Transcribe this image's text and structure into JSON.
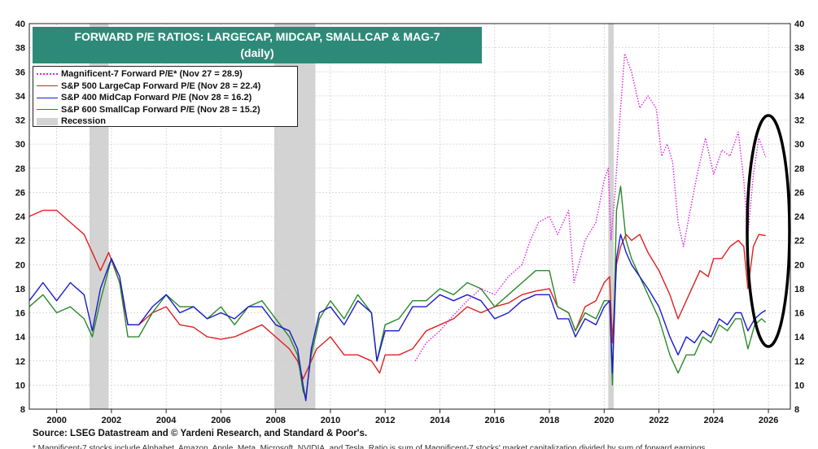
{
  "chart_data": {
    "type": "line",
    "title": "FORWARD P/E RATIOS: LARGECAP, MIDCAP, SMALLCAP & MAG-7",
    "subtitle": "(daily)",
    "xlabel": "",
    "ylabel": "",
    "xlim": [
      1999.0,
      2026.8
    ],
    "ylim": [
      8,
      40
    ],
    "x_ticks": [
      "2000",
      "2002",
      "2004",
      "2006",
      "2008",
      "2010",
      "2012",
      "2014",
      "2016",
      "2018",
      "2020",
      "2022",
      "2024",
      "2026"
    ],
    "y_ticks": [
      8,
      10,
      12,
      14,
      16,
      18,
      20,
      22,
      24,
      26,
      28,
      30,
      32,
      34,
      36,
      38,
      40
    ],
    "y_tick_labels_left": [
      "8",
      "10",
      "12",
      "14",
      "16",
      "18",
      "20",
      "22",
      "24",
      "26",
      "28",
      "30",
      "32",
      "34",
      "36",
      "38",
      "40"
    ],
    "y_tick_labels_right": [
      "8",
      "10",
      "12",
      "14",
      "16",
      "18",
      "20",
      "22",
      "24",
      "26",
      "28",
      "30",
      "32",
      "34",
      "36",
      "38",
      "40"
    ],
    "recessions": [
      [
        2001.2,
        2001.9
      ],
      [
        2007.95,
        2009.45
      ],
      [
        2020.15,
        2020.35
      ]
    ],
    "recession_color": "#d3d3d3",
    "annotation": {
      "type": "ellipse",
      "center": [
        2025.6,
        22.8
      ],
      "note": "black oval highlighting latest readings"
    },
    "series": [
      {
        "name": "Magnificent-7 Forward P/E* (Nov 27 = 28.9)",
        "color": "#dd22dd",
        "style": "dotted",
        "x": [
          2013.1,
          2013.5,
          2014.0,
          2014.5,
          2015.0,
          2015.5,
          2016.0,
          2016.5,
          2017.0,
          2017.3,
          2017.6,
          2018.0,
          2018.3,
          2018.7,
          2018.9,
          2019.3,
          2019.7,
          2020.0,
          2020.15,
          2020.25,
          2020.4,
          2020.6,
          2020.75,
          2021.0,
          2021.3,
          2021.6,
          2021.9,
          2022.1,
          2022.3,
          2022.5,
          2022.7,
          2022.9,
          2023.1,
          2023.4,
          2023.7,
          2024.0,
          2024.3,
          2024.6,
          2024.9,
          2025.1,
          2025.25,
          2025.45,
          2025.65,
          2025.9
        ],
        "values": [
          12.0,
          13.5,
          14.5,
          15.8,
          17.0,
          18.0,
          17.5,
          19.0,
          20.0,
          22.0,
          23.5,
          24.0,
          22.5,
          24.5,
          18.5,
          22.0,
          23.5,
          27.0,
          28.0,
          22.0,
          26.0,
          33.0,
          37.5,
          36.0,
          33.0,
          34.0,
          33.0,
          29.0,
          30.0,
          28.5,
          23.5,
          21.5,
          24.0,
          27.5,
          30.5,
          27.5,
          29.5,
          29.0,
          31.0,
          27.0,
          22.5,
          27.5,
          30.5,
          28.9
        ]
      },
      {
        "name": "S&P 500 LargeCap Forward P/E (Nov 28 = 22.4)",
        "color": "#e02020",
        "style": "solid",
        "x": [
          1999.0,
          1999.5,
          2000.0,
          2000.5,
          2001.0,
          2001.3,
          2001.6,
          2001.9,
          2002.3,
          2002.6,
          2003.0,
          2003.5,
          2004.0,
          2004.5,
          2005.0,
          2005.5,
          2006.0,
          2006.5,
          2007.0,
          2007.5,
          2008.0,
          2008.5,
          2008.8,
          2009.0,
          2009.2,
          2009.5,
          2010.0,
          2010.5,
          2011.0,
          2011.5,
          2011.8,
          2012.0,
          2012.5,
          2013.0,
          2013.5,
          2014.0,
          2014.5,
          2015.0,
          2015.5,
          2016.0,
          2016.5,
          2017.0,
          2017.5,
          2018.0,
          2018.3,
          2018.7,
          2018.95,
          2019.3,
          2019.7,
          2020.0,
          2020.2,
          2020.3,
          2020.45,
          2020.6,
          2020.8,
          2021.0,
          2021.3,
          2021.6,
          2022.0,
          2022.4,
          2022.7,
          2022.9,
          2023.2,
          2023.5,
          2023.8,
          2024.0,
          2024.3,
          2024.6,
          2024.9,
          2025.1,
          2025.25,
          2025.45,
          2025.65,
          2025.9
        ],
        "values": [
          24.0,
          24.5,
          24.5,
          23.5,
          22.5,
          21.0,
          19.5,
          21.0,
          18.5,
          15.0,
          15.0,
          16.0,
          16.5,
          15.0,
          14.8,
          14.0,
          13.8,
          14.0,
          14.5,
          15.0,
          14.0,
          13.0,
          12.0,
          10.5,
          11.5,
          13.0,
          14.0,
          12.5,
          12.5,
          12.0,
          11.0,
          12.5,
          12.5,
          13.0,
          14.5,
          15.0,
          15.5,
          16.5,
          16.0,
          16.5,
          16.8,
          17.5,
          17.8,
          18.0,
          16.5,
          16.0,
          14.5,
          16.5,
          17.0,
          18.5,
          19.0,
          13.5,
          20.0,
          21.5,
          22.5,
          22.0,
          22.5,
          21.0,
          19.5,
          17.5,
          15.5,
          16.5,
          18.0,
          19.5,
          19.0,
          20.5,
          20.5,
          21.5,
          22.0,
          21.5,
          18.0,
          21.5,
          22.5,
          22.4
        ]
      },
      {
        "name": "S&P 400 MidCap Forward P/E (Nov 28 = 16.2)",
        "color": "#1a1acc",
        "style": "solid",
        "x": [
          1999.0,
          1999.5,
          2000.0,
          2000.5,
          2001.0,
          2001.3,
          2001.6,
          2002.0,
          2002.3,
          2002.6,
          2003.0,
          2003.5,
          2004.0,
          2004.5,
          2005.0,
          2005.5,
          2006.0,
          2006.5,
          2007.0,
          2007.5,
          2008.0,
          2008.5,
          2008.8,
          2009.0,
          2009.1,
          2009.3,
          2009.6,
          2010.0,
          2010.5,
          2011.0,
          2011.5,
          2011.7,
          2012.0,
          2012.5,
          2013.0,
          2013.5,
          2014.0,
          2014.5,
          2015.0,
          2015.5,
          2016.0,
          2016.5,
          2017.0,
          2017.5,
          2018.0,
          2018.3,
          2018.7,
          2018.95,
          2019.3,
          2019.7,
          2020.0,
          2020.2,
          2020.3,
          2020.45,
          2020.6,
          2020.8,
          2021.0,
          2021.3,
          2021.6,
          2022.0,
          2022.4,
          2022.7,
          2023.0,
          2023.3,
          2023.6,
          2023.9,
          2024.2,
          2024.5,
          2024.8,
          2025.0,
          2025.25,
          2025.5,
          2025.75,
          2025.9
        ],
        "values": [
          17.0,
          18.5,
          17.0,
          18.5,
          17.5,
          14.5,
          18.0,
          20.5,
          19.0,
          15.0,
          15.0,
          16.5,
          17.5,
          16.0,
          16.5,
          15.5,
          16.0,
          15.5,
          16.5,
          16.5,
          15.0,
          14.5,
          13.0,
          10.0,
          8.7,
          13.0,
          16.0,
          16.5,
          15.0,
          17.0,
          16.0,
          12.0,
          14.5,
          14.5,
          16.5,
          16.5,
          17.5,
          17.0,
          17.5,
          17.0,
          15.5,
          16.0,
          17.0,
          17.5,
          17.5,
          15.5,
          15.5,
          14.0,
          15.5,
          15.0,
          16.5,
          17.0,
          11.0,
          20.5,
          22.5,
          21.0,
          20.0,
          19.0,
          18.0,
          16.5,
          14.0,
          12.5,
          14.0,
          13.5,
          14.5,
          14.0,
          15.5,
          15.0,
          16.0,
          16.0,
          14.5,
          15.5,
          16.0,
          16.2
        ]
      },
      {
        "name": "S&P 600 SmallCap Forward P/E (Nov 28 = 15.2)",
        "color": "#2a8a2a",
        "style": "solid",
        "x": [
          1999.0,
          1999.5,
          2000.0,
          2000.5,
          2001.0,
          2001.3,
          2001.6,
          2002.0,
          2002.3,
          2002.6,
          2003.0,
          2003.5,
          2004.0,
          2004.5,
          2005.0,
          2005.5,
          2006.0,
          2006.5,
          2007.0,
          2007.5,
          2008.0,
          2008.5,
          2008.8,
          2009.0,
          2009.1,
          2009.3,
          2009.6,
          2010.0,
          2010.5,
          2011.0,
          2011.5,
          2011.7,
          2012.0,
          2012.5,
          2013.0,
          2013.5,
          2014.0,
          2014.5,
          2015.0,
          2015.5,
          2016.0,
          2016.5,
          2017.0,
          2017.5,
          2018.0,
          2018.3,
          2018.7,
          2018.95,
          2019.3,
          2019.7,
          2020.0,
          2020.2,
          2020.3,
          2020.45,
          2020.6,
          2020.8,
          2021.0,
          2021.3,
          2021.6,
          2022.0,
          2022.4,
          2022.7,
          2023.0,
          2023.3,
          2023.6,
          2023.9,
          2024.2,
          2024.5,
          2024.8,
          2025.0,
          2025.25,
          2025.5,
          2025.75,
          2025.9
        ],
        "values": [
          16.5,
          17.5,
          16.0,
          16.5,
          15.5,
          14.0,
          17.0,
          20.5,
          18.5,
          14.0,
          14.0,
          16.0,
          17.5,
          16.5,
          16.5,
          15.5,
          16.5,
          15.0,
          16.5,
          17.0,
          15.5,
          14.0,
          12.5,
          9.5,
          9.0,
          12.5,
          15.5,
          17.0,
          15.5,
          17.5,
          16.0,
          12.0,
          15.0,
          15.5,
          17.0,
          17.0,
          18.0,
          17.5,
          18.5,
          18.0,
          16.5,
          17.5,
          18.5,
          19.5,
          19.5,
          16.5,
          16.0,
          14.5,
          16.0,
          15.5,
          17.0,
          17.0,
          10.0,
          24.5,
          26.5,
          22.0,
          20.5,
          19.0,
          17.5,
          15.5,
          12.5,
          11.0,
          12.5,
          12.5,
          14.0,
          13.5,
          15.0,
          14.5,
          15.5,
          15.5,
          13.0,
          15.0,
          15.5,
          15.2
        ]
      }
    ],
    "legend": {
      "placement": "top-left",
      "recession_label": "Recession"
    }
  },
  "source_text": "Source: LSEG Datastream and © Yardeni Research, and Standard & Poor's.",
  "footnote_text": "* Magnificent-7 stocks include Alphabet, Amazon, Apple, Meta, Microsoft, NVIDIA, and Tesla. Ratio is sum of Magnificent-7 stocks' market capitalization divided by sum of forward earnings."
}
